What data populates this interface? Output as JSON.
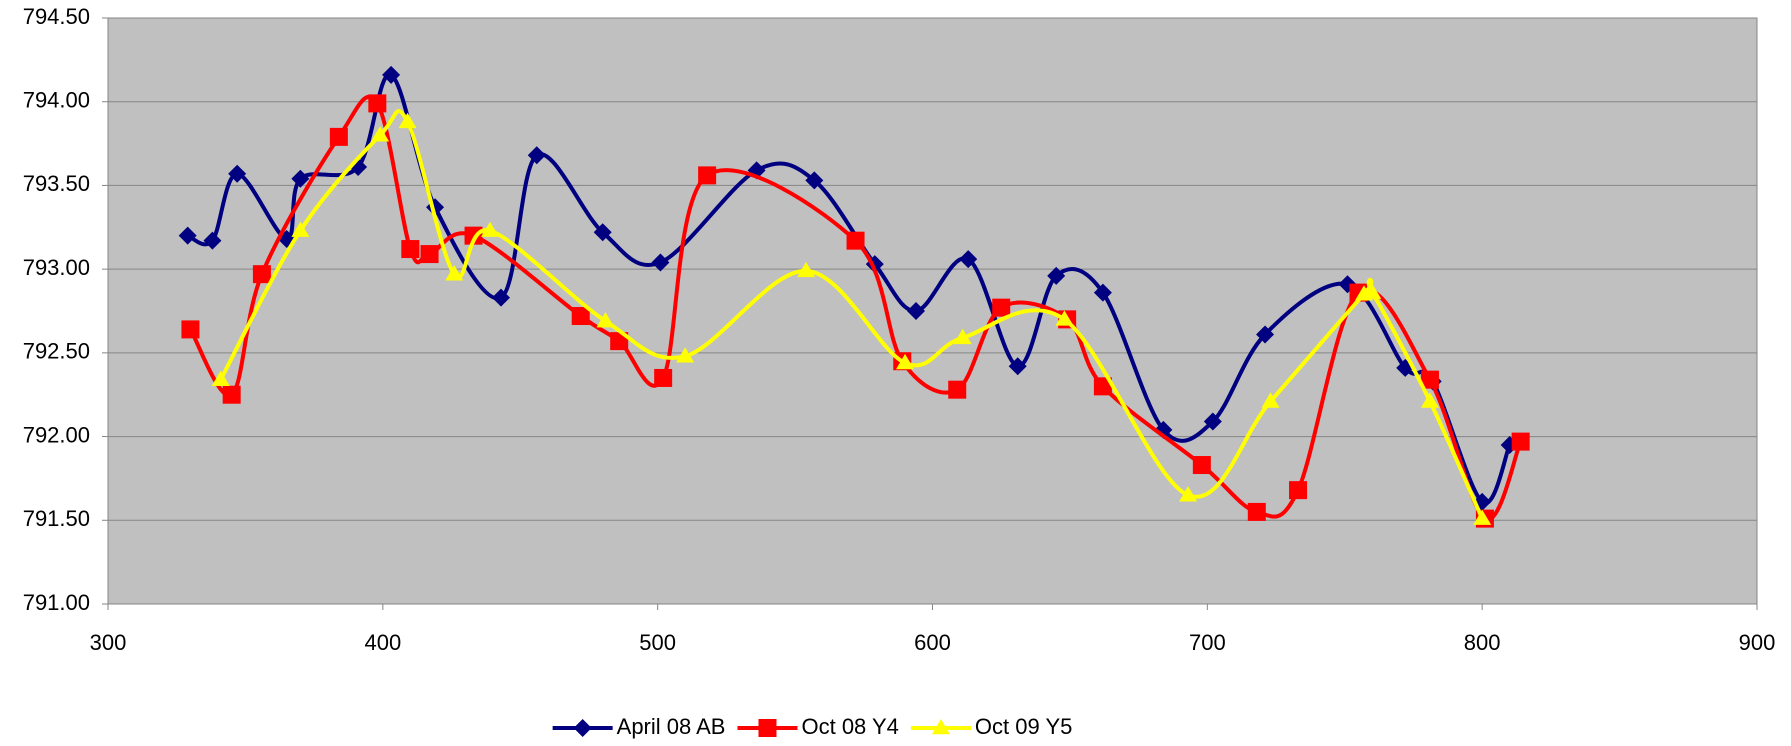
{
  "chart_data": {
    "type": "line",
    "xlim": [
      300,
      900
    ],
    "xticks": [
      300,
      400,
      500,
      600,
      700,
      800,
      900
    ],
    "ylim": [
      791,
      794.5
    ],
    "yticks": [
      {
        "value": 791,
        "label": "791.00"
      },
      {
        "value": 791.5,
        "label": "791.50"
      },
      {
        "value": 792,
        "label": "792.00"
      },
      {
        "value": 792.5,
        "label": "792.50"
      },
      {
        "value": 793,
        "label": "793.00"
      },
      {
        "value": 793.5,
        "label": "793.50"
      },
      {
        "value": 794,
        "label": "794.00"
      },
      {
        "value": 794.5,
        "label": "794.50"
      }
    ],
    "grid": true,
    "legend": "bottom",
    "series": [
      {
        "name": "April 08 AB",
        "color": "#000080",
        "marker": "diamond",
        "x": [
          329,
          338,
          347,
          365,
          370,
          391,
          403,
          419,
          443,
          456,
          480,
          501,
          536,
          557,
          579,
          594,
          613,
          631,
          645,
          662,
          684,
          702,
          721,
          751,
          772,
          782,
          800,
          810
        ],
        "values": [
          793.2,
          793.17,
          793.57,
          793.18,
          793.54,
          793.61,
          794.16,
          793.37,
          792.83,
          793.68,
          793.22,
          793.04,
          793.59,
          793.53,
          793.03,
          792.75,
          793.06,
          792.42,
          792.96,
          792.86,
          792.04,
          792.09,
          792.61,
          792.91,
          792.41,
          792.33,
          791.61,
          791.95
        ]
      },
      {
        "name": "Oct 08 Y4",
        "color": "#ff0000",
        "marker": "square",
        "x": [
          330,
          345,
          356,
          384,
          398,
          410,
          417,
          433,
          472,
          486,
          502,
          518,
          572,
          589,
          609,
          625,
          649,
          662,
          698,
          718,
          733,
          755,
          781,
          801,
          814
        ],
        "values": [
          792.64,
          792.25,
          792.97,
          793.79,
          793.99,
          793.12,
          793.09,
          793.2,
          792.72,
          792.57,
          792.35,
          793.56,
          793.17,
          792.45,
          792.28,
          792.77,
          792.7,
          792.3,
          791.83,
          791.55,
          791.68,
          792.86,
          792.34,
          791.51,
          791.97
        ]
      },
      {
        "name": "Oct 09 Y5",
        "color": "#ffff00",
        "marker": "triangle",
        "x": [
          341,
          370,
          399,
          409,
          426,
          439,
          481,
          510,
          554,
          590,
          611,
          648,
          693,
          723,
          757,
          760,
          781,
          800
        ],
        "values": [
          792.34,
          793.23,
          793.8,
          793.88,
          792.97,
          793.23,
          792.69,
          792.48,
          792.99,
          792.44,
          792.59,
          792.7,
          791.65,
          792.21,
          792.85,
          792.86,
          792.21,
          791.51
        ]
      }
    ]
  }
}
